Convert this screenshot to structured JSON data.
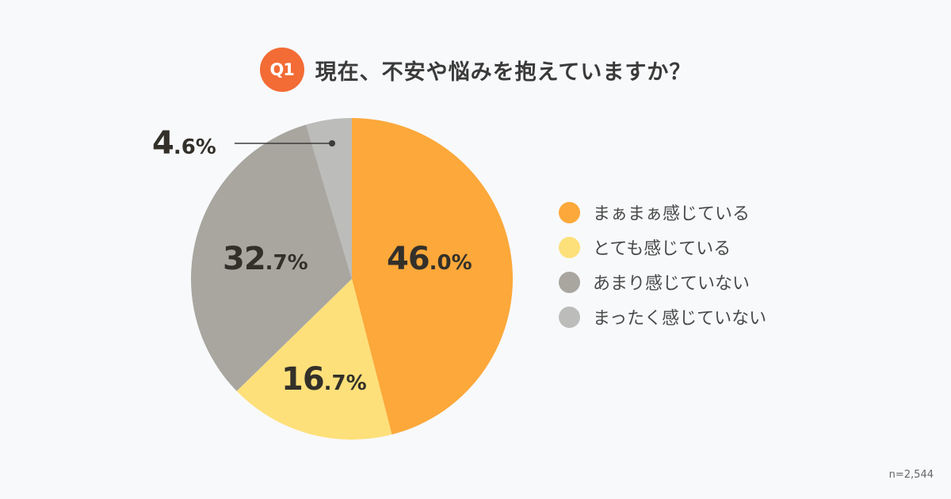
{
  "header": {
    "badge": "Q1",
    "title": "現在、不安や悩みを抱えていますか？"
  },
  "chart_data": {
    "type": "pie",
    "title": "現在、不安や悩みを抱えていますか？",
    "categories": [
      "まぁまぁ感じている",
      "とても感じている",
      "あまり感じていない",
      "まったく感じていない"
    ],
    "values": [
      46.0,
      16.7,
      32.7,
      4.6
    ],
    "unit": "%",
    "colors": [
      "#fca83a",
      "#fde07a",
      "#a8a69f",
      "#bcbcba"
    ],
    "start_angle": "12 o'clock, clockwise",
    "legend_position": "right",
    "sample_size": "n=2,544"
  },
  "labels": [
    {
      "big": "46",
      "small": ".0%"
    },
    {
      "big": "16",
      "small": ".7%"
    },
    {
      "big": "32",
      "small": ".7%"
    },
    {
      "big": "4",
      "small": ".6%"
    }
  ],
  "legend": [
    {
      "label": "まぁまぁ感じている",
      "color": "#fca83a"
    },
    {
      "label": "とても感じている",
      "color": "#fde07a"
    },
    {
      "label": "あまり感じていない",
      "color": "#a8a69f"
    },
    {
      "label": "まったく感じていない",
      "color": "#bcbcba"
    }
  ],
  "footer": {
    "sample_size": "n=2,544"
  }
}
